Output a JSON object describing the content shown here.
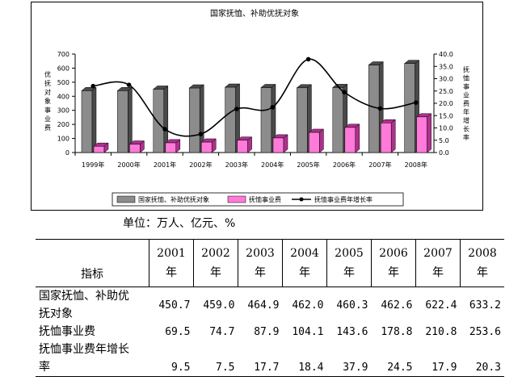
{
  "chart_data": {
    "type": "bar",
    "title": "国家抚恤、补助优抚对象",
    "categories": [
      "1999年",
      "2000年",
      "2001年",
      "2002年",
      "2003年",
      "2004年",
      "2005年",
      "2006年",
      "2007年",
      "2008年"
    ],
    "series": [
      {
        "name": "国家抚恤、补助优抚对象",
        "kind": "bar",
        "axis": "left",
        "color": "#808080",
        "values": [
          440,
          440,
          450.7,
          459.0,
          464.9,
          462.0,
          460.3,
          462.6,
          622.4,
          633.2
        ]
      },
      {
        "name": "抚恤事业费",
        "kind": "bar",
        "axis": "left",
        "color": "#ff66cc",
        "values": [
          45,
          60,
          69.5,
          74.7,
          87.9,
          104.1,
          143.6,
          178.8,
          210.8,
          253.6
        ]
      },
      {
        "name": "抚恤事业费年增长率",
        "kind": "line",
        "axis": "right",
        "color": "#000000",
        "values": [
          27,
          27.5,
          9.5,
          7.5,
          17.7,
          18.4,
          37.9,
          24.5,
          17.9,
          20.3
        ]
      }
    ],
    "ylabel": "优抚对象事业费",
    "ylim": [
      0,
      700
    ],
    "yticks": [
      "0",
      "100",
      "200",
      "300",
      "400",
      "500",
      "600",
      "700"
    ],
    "y2label": "抚恤事业费年增长率",
    "y2lim": [
      0,
      40
    ],
    "y2ticks": [
      "0.0",
      "5.0",
      "10.0",
      "15.0",
      "20.0",
      "25.0",
      "30.0",
      "35.0",
      "40.0"
    ],
    "legend_position": "bottom",
    "grid": false
  },
  "unit_text": "单位：万人、亿元、%",
  "table": {
    "indicator_header": "指标",
    "years": [
      "2001年",
      "2002年",
      "2003年",
      "2004年",
      "2005年",
      "2006年",
      "2007年",
      "2008年"
    ],
    "rows": [
      {
        "label_lines": [
          "国家抚恤、补助优",
          "抚对象"
        ],
        "values": [
          "450.7",
          "459.0",
          "464.9",
          "462.0",
          "460.3",
          "462.6",
          "622.4",
          "633.2"
        ]
      },
      {
        "label_lines": [
          "抚恤事业费"
        ],
        "values": [
          "69.5",
          "74.7",
          "87.9",
          "104.1",
          "143.6",
          "178.8",
          "210.8",
          "253.6"
        ]
      },
      {
        "label_lines": [
          "抚恤事业费年增长",
          "率"
        ],
        "values": [
          "9.5",
          "7.5",
          "17.7",
          "18.4",
          "37.9",
          "24.5",
          "17.9",
          "20.3"
        ]
      }
    ]
  }
}
